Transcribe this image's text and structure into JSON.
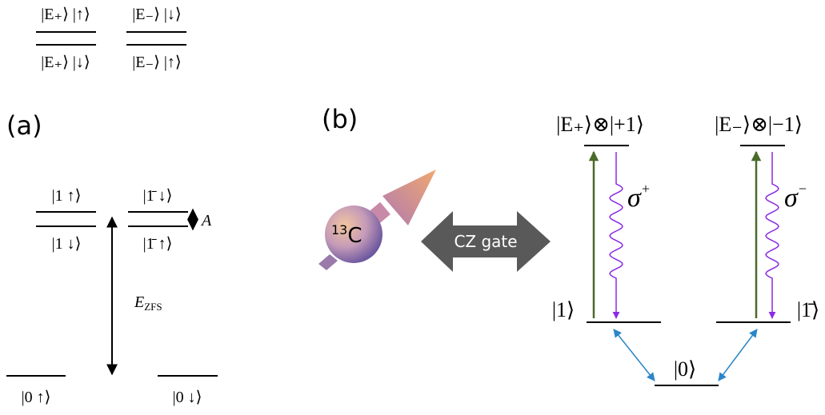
{
  "top_legend": {
    "upper_left": "|E₊⟩ |↑⟩",
    "upper_right": "|E₋⟩ |↓⟩",
    "lower_left": "|E₊⟩ |↓⟩",
    "lower_right": "|E₋⟩ |↑⟩"
  },
  "panel_a": {
    "label": "(a)",
    "levels": {
      "one_up": "|1 ↑⟩",
      "one_down": "|1 ↓⟩",
      "onebar_down": "|1̄ ↓⟩",
      "onebar_up": "|1̄ ↑⟩",
      "zero_up": "|0 ↑⟩",
      "zero_down": "|0 ↓⟩"
    },
    "splitting": "A",
    "zfs": {
      "symbol": "E",
      "subscript": "ZFS"
    }
  },
  "panel_b": {
    "label": "(b)",
    "nucleus": {
      "mass_number": "13",
      "element": "C"
    },
    "gate": "CZ gate",
    "excited_plus": "|E₊⟩⊗|+1⟩",
    "excited_minus": "|E₋⟩⊗|−1⟩",
    "sigma_plus": {
      "symbol": "σ",
      "superscript": "+"
    },
    "sigma_minus": {
      "symbol": "σ",
      "superscript": "−"
    },
    "ground_one": "|1⟩",
    "ground_onebar": "|1̄⟩",
    "ground_zero": "|0⟩"
  }
}
